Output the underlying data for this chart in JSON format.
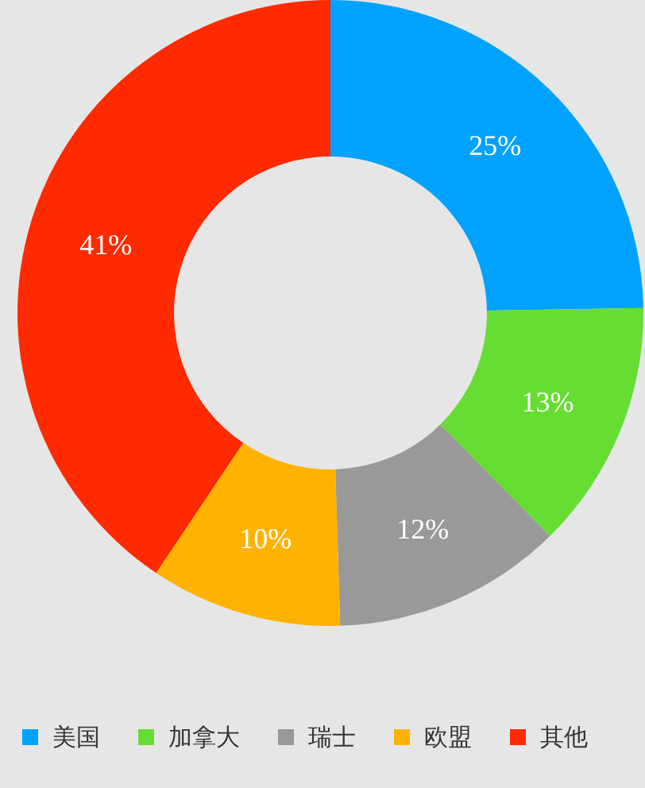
{
  "chart_data": {
    "type": "donut",
    "categories": [
      "美国",
      "加拿大",
      "瑞士",
      "欧盟",
      "其他"
    ],
    "values": [
      25,
      13,
      12,
      10,
      41
    ],
    "colors": [
      "#00a2ff",
      "#66dd33",
      "#999999",
      "#ffb300",
      "#ff2a00"
    ],
    "value_labels": [
      "25%",
      "13%",
      "12%",
      "10%",
      "41%"
    ],
    "legend": "bottom"
  }
}
